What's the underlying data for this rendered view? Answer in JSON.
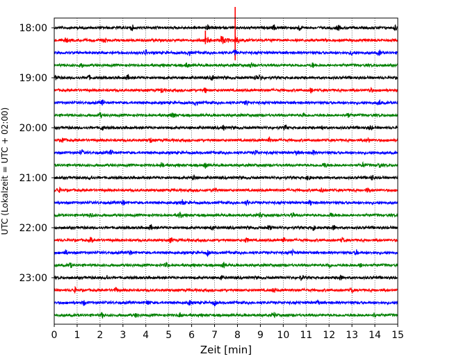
{
  "chart_data": {
    "type": "line",
    "title": "",
    "xlabel": "Zeit  [min]",
    "ylabel": "UTC (Lokalzeit = UTC + 02:00)",
    "xlim": [
      0,
      15
    ],
    "x_ticks": [
      "0",
      "1",
      "2",
      "3",
      "4",
      "5",
      "6",
      "7",
      "8",
      "9",
      "10",
      "11",
      "12",
      "13",
      "14",
      "15"
    ],
    "y_tick_labels": [
      "18:00",
      "19:00",
      "20:00",
      "21:00",
      "22:00",
      "23:00"
    ],
    "grid": "vertical dotted",
    "trace_colors": [
      "#000000",
      "#ff0000",
      "#0000ff",
      "#008000"
    ],
    "series": [
      {
        "start": "18:00",
        "bursts": [
          3.4,
          6.7,
          9.6,
          10.7,
          12.4,
          14.9
        ]
      },
      {
        "start": "18:15",
        "events": [
          6.6,
          7.3,
          7.9
        ],
        "bursts": [
          0.5,
          2.2
        ]
      },
      {
        "start": "18:30",
        "bursts": [
          4.0,
          5.9,
          7.9,
          13.0,
          14.2
        ]
      },
      {
        "start": "18:45",
        "bursts": [
          1.2,
          5.8,
          8.6,
          11.3
        ]
      },
      {
        "start": "19:00",
        "bursts": [
          0.1,
          1.5,
          3.2,
          6.9,
          8.8,
          9.0
        ]
      },
      {
        "start": "19:15",
        "bursts": [
          4.7,
          6.6,
          11.2,
          13.8
        ]
      },
      {
        "start": "19:30",
        "bursts": [
          2.1,
          6.2,
          8.4,
          14.2
        ]
      },
      {
        "start": "19:45",
        "bursts": [
          2.0,
          5.2,
          10.9,
          12.8
        ]
      },
      {
        "start": "20:00",
        "bursts": [
          2.1,
          7.4,
          10.1,
          11.7,
          13.8
        ]
      },
      {
        "start": "20:15",
        "bursts": [
          0.4,
          4.2,
          9.4,
          13.7
        ]
      },
      {
        "start": "20:30",
        "bursts": [
          1.2,
          2.5,
          8.8,
          10.6,
          11.3
        ]
      },
      {
        "start": "20:45",
        "bursts": [
          4.7,
          6.6,
          11.8,
          13.5,
          14.2
        ]
      },
      {
        "start": "21:00",
        "bursts": [
          1.6,
          6.1,
          11.1,
          13.9
        ]
      },
      {
        "start": "21:15",
        "bursts": [
          0.2,
          7.0,
          11.7,
          13.7
        ]
      },
      {
        "start": "21:30",
        "bursts": [
          3.0,
          5.6,
          8.4,
          11.2
        ]
      },
      {
        "start": "21:45",
        "bursts": [
          1.6,
          5.5,
          9.0,
          10.4,
          12.1
        ]
      },
      {
        "start": "22:00",
        "bursts": [
          4.2,
          6.9,
          9.4,
          11.3,
          12.2
        ]
      },
      {
        "start": "22:15",
        "bursts": [
          1.6,
          5.1,
          8.4,
          10.0,
          12.6
        ]
      },
      {
        "start": "22:30",
        "bursts": [
          0.5,
          3.3,
          6.7,
          10.4,
          13.2
        ]
      },
      {
        "start": "22:45",
        "bursts": [
          0.7,
          4.9,
          7.4,
          12.0,
          13.4
        ]
      },
      {
        "start": "23:00",
        "bursts": [
          2.3,
          7.3,
          10.8,
          12.5
        ]
      },
      {
        "start": "23:15",
        "bursts": [
          0.9,
          2.7,
          9.6,
          13.0
        ]
      },
      {
        "start": "23:30",
        "bursts": [
          1.3,
          4.1,
          5.9,
          7.0,
          11.5
        ]
      },
      {
        "start": "23:45",
        "bursts": [
          2.1,
          3.6,
          5.5,
          9.6,
          14.0
        ]
      }
    ]
  }
}
